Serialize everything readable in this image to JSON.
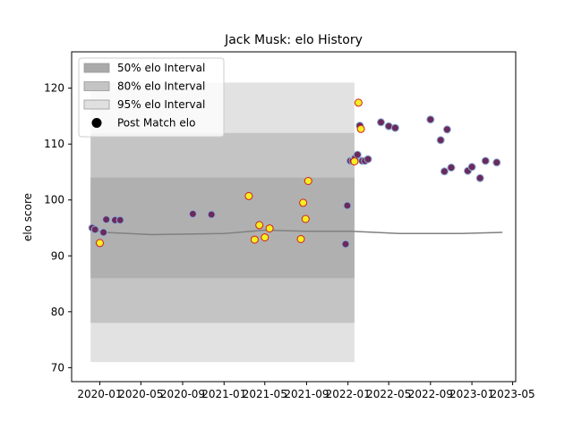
{
  "chart_data": {
    "type": "scatter",
    "title": "Jack Musk: elo History",
    "xlabel": "",
    "ylabel": "elo score",
    "xlim": [
      "2019-10-10",
      "2023-05-10"
    ],
    "ylim": [
      67.5,
      126.5
    ],
    "x_ticks": [
      {
        "date": "2020-01-01",
        "label": "2020-01"
      },
      {
        "date": "2020-05-01",
        "label": "2020-05"
      },
      {
        "date": "2020-09-01",
        "label": "2020-09"
      },
      {
        "date": "2021-01-01",
        "label": "2021-01"
      },
      {
        "date": "2021-05-01",
        "label": "2021-05"
      },
      {
        "date": "2021-09-01",
        "label": "2021-09"
      },
      {
        "date": "2022-01-01",
        "label": "2022-01"
      },
      {
        "date": "2022-05-01",
        "label": "2022-05"
      },
      {
        "date": "2022-09-01",
        "label": "2022-09"
      },
      {
        "date": "2023-01-01",
        "label": "2023-01"
      },
      {
        "date": "2023-05-01",
        "label": "2023-05"
      }
    ],
    "y_ticks": [
      70,
      80,
      90,
      100,
      110,
      120
    ],
    "grid": false,
    "legend_position": "top-left",
    "legend": [
      {
        "label": "50% elo Interval",
        "kind": "band",
        "color": "#aaaaaa"
      },
      {
        "label": "80% elo Interval",
        "kind": "band",
        "color": "#c4c4c4"
      },
      {
        "label": "95% elo Interval",
        "kind": "band",
        "color": "#e0e0e0"
      },
      {
        "label": "Post Match elo",
        "kind": "marker",
        "color": "#000000"
      }
    ],
    "bands": [
      {
        "name": "95% elo Interval",
        "color": "#e2e2e2",
        "x": [
          "2019-12-05",
          "2021-05-01",
          "2022-01-20"
        ],
        "low": [
          71,
          71,
          71
        ],
        "high": [
          121,
          121,
          121
        ]
      },
      {
        "name": "80% elo Interval",
        "color": "#c4c4c4",
        "x": [
          "2019-12-05",
          "2021-05-01",
          "2022-01-20"
        ],
        "low": [
          78,
          78,
          78
        ],
        "high": [
          112,
          112,
          112
        ]
      },
      {
        "name": "50% elo Interval",
        "color": "#b0b0b0",
        "x": [
          "2019-12-05",
          "2021-05-01",
          "2022-01-20"
        ],
        "low": [
          86,
          86,
          86
        ],
        "high": [
          104,
          104,
          104
        ]
      }
    ],
    "center_line": {
      "color": "#808080",
      "x": [
        "2019-12-05",
        "2020-01-15",
        "2020-06-01",
        "2021-01-01",
        "2021-05-01",
        "2021-09-01",
        "2022-01-10",
        "2022-06-01",
        "2022-12-01",
        "2023-04-01"
      ],
      "y": [
        94.8,
        94.2,
        93.8,
        94.0,
        94.6,
        94.4,
        94.4,
        94.0,
        94.0,
        94.2
      ]
    },
    "points": {
      "name": "Post Match elo",
      "dark": {
        "fill": "#6b2a5c",
        "edge": "#8fb0d6",
        "x": [
          "2019-12-10",
          "2019-12-18",
          "2019-12-30",
          "2020-01-12",
          "2020-01-20",
          "2020-02-15",
          "2020-03-01",
          "2020-10-01",
          "2020-11-25",
          "2021-12-25",
          "2021-12-30",
          "2022-01-08",
          "2022-01-15",
          "2022-01-22",
          "2022-01-29",
          "2022-02-05",
          "2022-02-12",
          "2022-02-20",
          "2022-03-01",
          "2022-04-08",
          "2022-05-01",
          "2022-05-20",
          "2022-09-01",
          "2022-10-01",
          "2022-10-12",
          "2022-10-20",
          "2022-11-01",
          "2022-12-20",
          "2023-01-01",
          "2023-01-25",
          "2023-02-10",
          "2023-03-15"
        ],
        "y": [
          95.0,
          94.7,
          92.3,
          94.2,
          96.5,
          96.4,
          96.4,
          97.5,
          97.4,
          92.1,
          99.0,
          107.0,
          107.0,
          107.5,
          108.1,
          113.3,
          107.0,
          107.0,
          107.3,
          113.9,
          113.2,
          112.9,
          114.4,
          110.7,
          105.1,
          112.6,
          105.8,
          105.2,
          105.9,
          103.9,
          107.0,
          106.7
        ]
      },
      "yellow": {
        "fill": "#f5ef21",
        "edge": "#d21f1f",
        "x": [
          "2020-01-01",
          "2021-03-15",
          "2021-04-01",
          "2021-04-15",
          "2021-05-01",
          "2021-05-15",
          "2021-08-15",
          "2021-08-22",
          "2021-08-29",
          "2021-09-06",
          "2022-01-20",
          "2022-02-01",
          "2022-02-08"
        ],
        "y": [
          92.3,
          100.7,
          92.9,
          95.5,
          93.3,
          94.9,
          93.0,
          99.5,
          96.6,
          103.4,
          106.9,
          117.4,
          112.7
        ]
      }
    }
  }
}
